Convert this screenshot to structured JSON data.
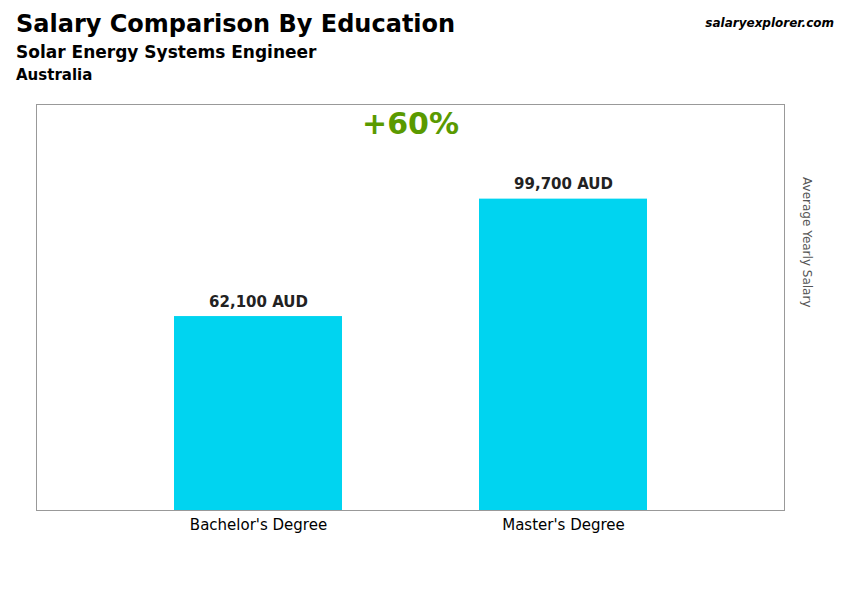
{
  "chart_data": {
    "type": "bar",
    "title": "Salary Comparison By Education",
    "subtitle": "Solar Energy Systems Engineer",
    "annotations": [
      "Australia",
      "salaryexplorer.com",
      "+60%"
    ],
    "ylabel": "Average Yearly Salary",
    "categories": [
      "Bachelor's Degree",
      "Master's Degree"
    ],
    "values": [
      62100,
      99700
    ],
    "value_labels": [
      "62,100 AUD",
      "99,700 AUD"
    ],
    "data_labels": true,
    "color": "#00D4F0",
    "ylim": [
      0,
      130000
    ],
    "tick_labels": "x"
  }
}
